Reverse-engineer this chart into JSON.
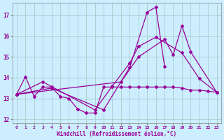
{
  "xlabel": "Windchill (Refroidissement éolien,°C)",
  "bg_color": "#cceeff",
  "grid_color": "#aacccc",
  "line_color": "#990099",
  "tick_color": "#990099",
  "xlim": [
    -0.5,
    23.5
  ],
  "ylim": [
    11.8,
    17.6
  ],
  "yticks": [
    12,
    13,
    14,
    15,
    16,
    17
  ],
  "xticks": [
    0,
    1,
    2,
    3,
    4,
    5,
    6,
    7,
    8,
    9,
    10,
    11,
    12,
    13,
    14,
    15,
    16,
    17,
    18,
    19,
    20,
    21,
    22,
    23
  ],
  "s1_x": [
    0,
    1,
    2,
    3,
    4,
    5,
    6,
    7,
    8,
    9,
    10,
    11,
    12,
    13,
    14,
    15,
    16,
    17,
    18,
    19,
    20,
    21,
    22,
    23
  ],
  "s1_y": [
    13.2,
    14.05,
    13.1,
    13.55,
    13.55,
    13.1,
    13.0,
    12.5,
    12.3,
    12.3,
    13.55,
    13.55,
    13.55,
    13.55,
    13.55,
    13.55,
    13.55,
    13.55,
    13.55,
    13.5,
    13.4,
    13.4,
    13.35,
    13.3
  ],
  "s2_x": [
    0,
    3,
    9,
    11,
    13,
    14,
    16,
    19,
    21,
    23
  ],
  "s2_y": [
    13.2,
    13.8,
    12.45,
    13.6,
    14.7,
    15.5,
    15.95,
    15.2,
    13.95,
    13.3
  ],
  "s3_x": [
    0,
    4,
    10,
    13,
    15,
    16,
    17
  ],
  "s3_y": [
    13.2,
    13.5,
    12.45,
    14.5,
    17.15,
    17.4,
    14.55
  ],
  "s4_x": [
    0,
    12,
    14,
    17,
    18,
    19,
    20,
    23
  ],
  "s4_y": [
    13.2,
    13.8,
    15.0,
    15.85,
    15.1,
    16.5,
    15.25,
    13.3
  ]
}
